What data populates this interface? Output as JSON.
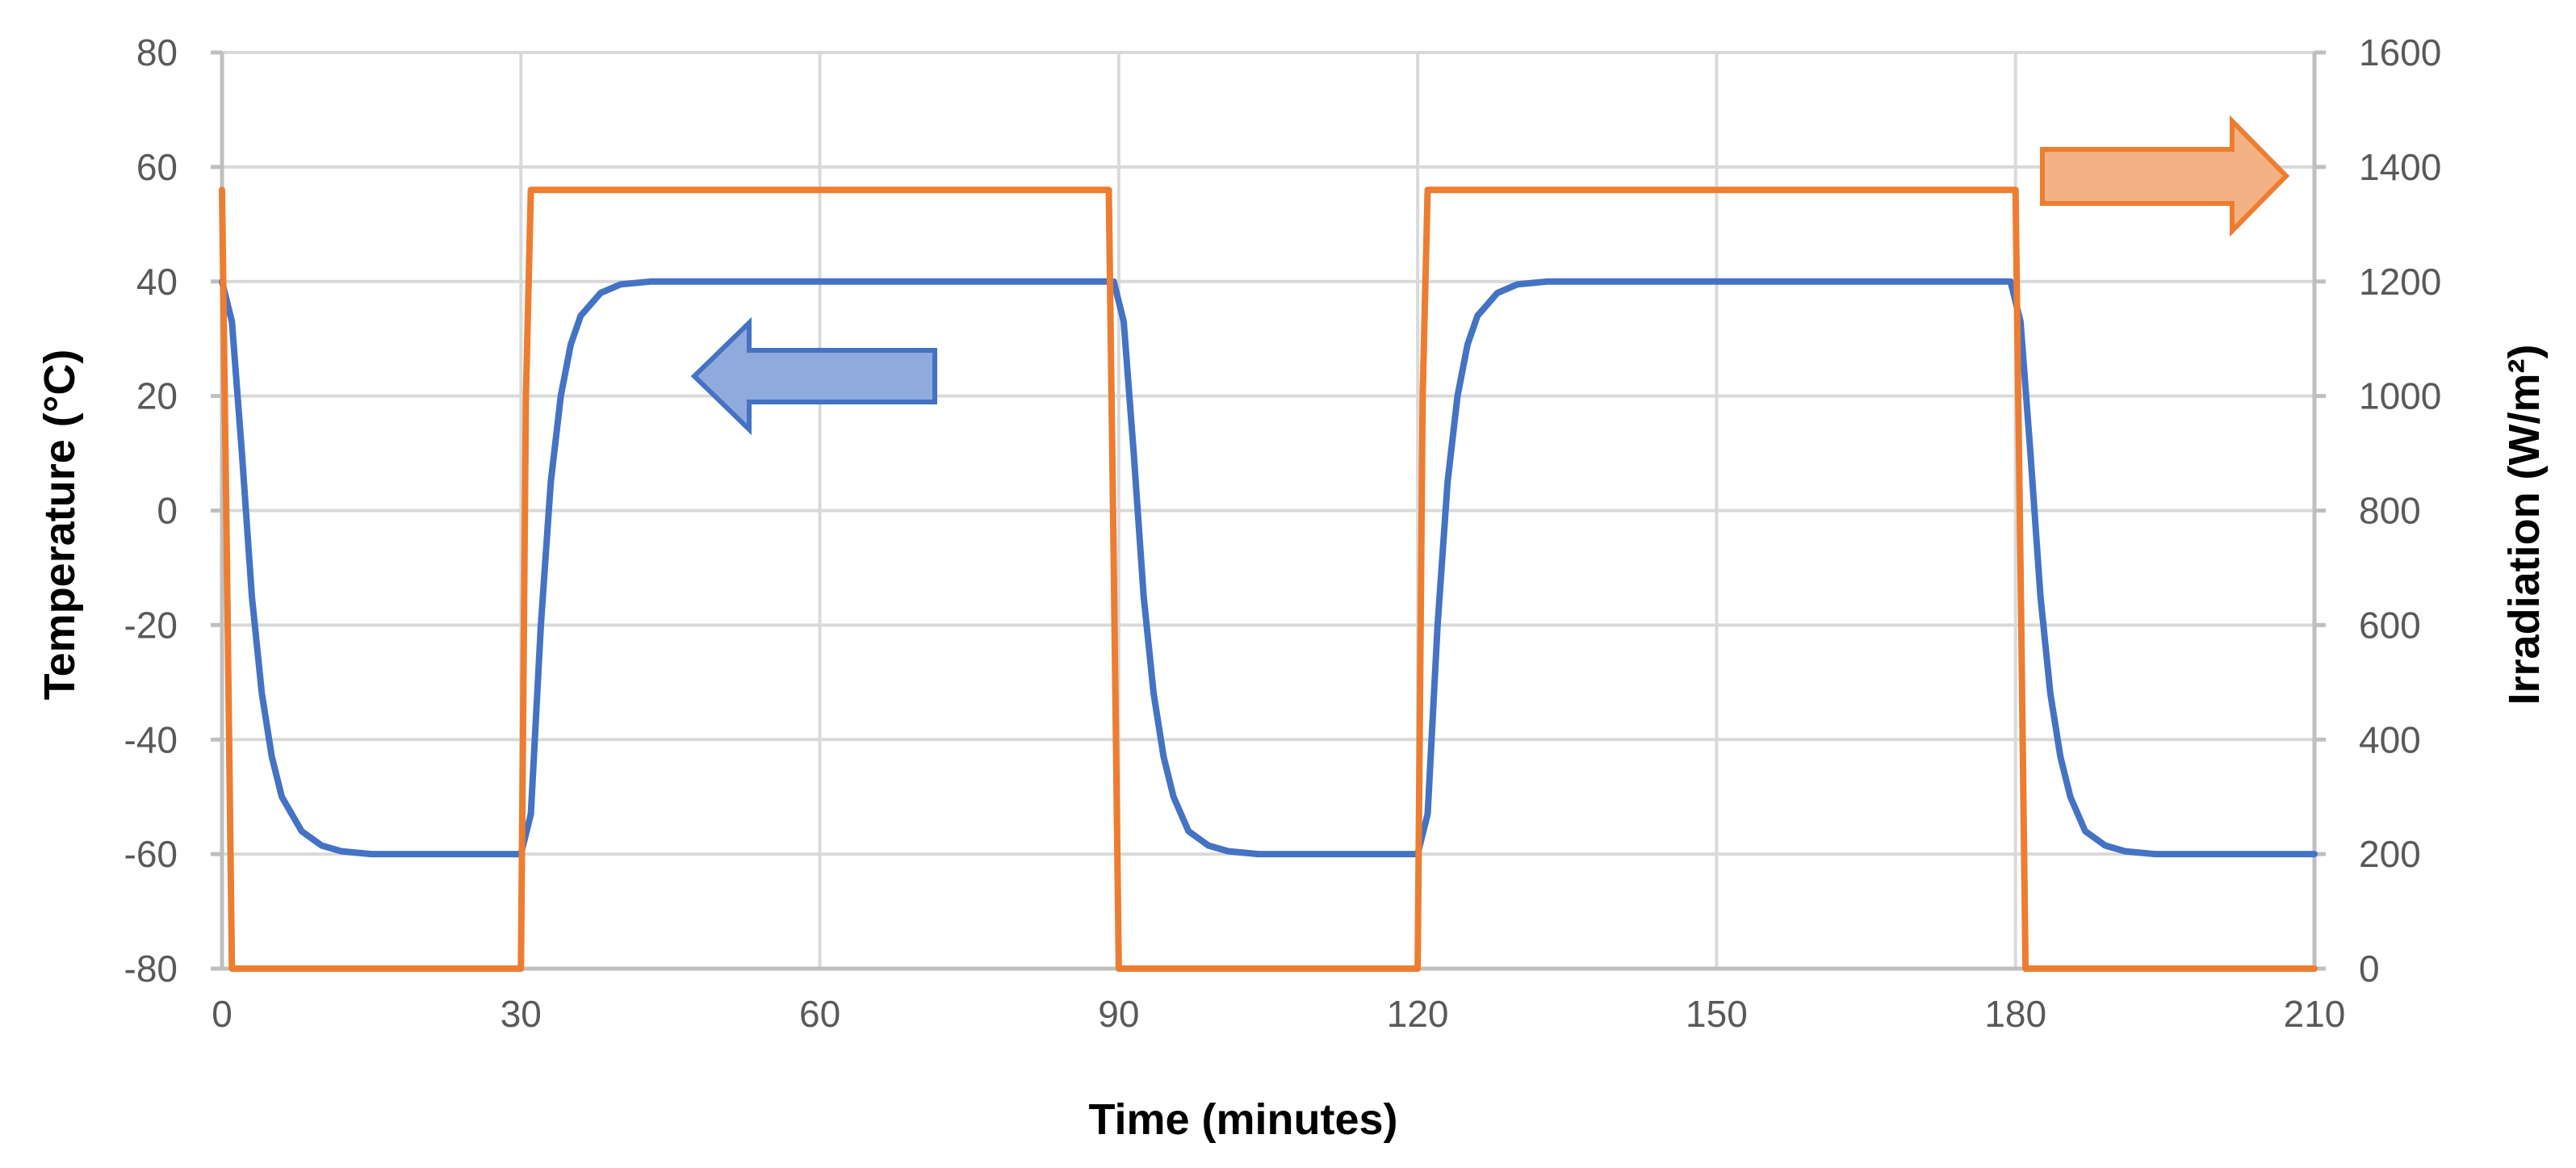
{
  "chart_data": {
    "type": "line",
    "title": "",
    "xlabel": "Time (minutes)",
    "ylabel": "Temperature (°C)",
    "y2label": "Irradiation (W/m²)",
    "xlim": [
      0,
      210
    ],
    "ylim": [
      -80,
      80
    ],
    "y2lim": [
      0,
      1600
    ],
    "x_ticks": [
      0,
      30,
      60,
      90,
      120,
      150,
      180,
      210
    ],
    "y_ticks": [
      -80,
      -60,
      -40,
      -20,
      0,
      20,
      40,
      60,
      80
    ],
    "y2_ticks": [
      0,
      200,
      400,
      600,
      800,
      1000,
      1200,
      1400,
      1600
    ],
    "grid": true,
    "legend": "none",
    "series": [
      {
        "axis": "left",
        "color": "#4472C4",
        "x": [
          0,
          1,
          2,
          3,
          4,
          5,
          6,
          8,
          10,
          12,
          15,
          20,
          25,
          30,
          31,
          32,
          33,
          34,
          35,
          36,
          38,
          40,
          43,
          50,
          60,
          70,
          80,
          89.5,
          90.5,
          91.5,
          92.5,
          93.5,
          94.5,
          95.5,
          97,
          99,
          101,
          104,
          110,
          120,
          121,
          122,
          123,
          124,
          125,
          126,
          128,
          130,
          133,
          140,
          150,
          160,
          170,
          179.5,
          180.5,
          181.5,
          182.5,
          183.5,
          184.5,
          185.5,
          187,
          189,
          191,
          194,
          200,
          210
        ],
        "y": [
          40,
          33,
          10,
          -15,
          -32,
          -43,
          -50,
          -56,
          -58.5,
          -59.5,
          -60,
          -60,
          -60,
          -60,
          -53,
          -20,
          5,
          20,
          29,
          34,
          38,
          39.5,
          40,
          40,
          40,
          40,
          40,
          40,
          33,
          10,
          -15,
          -32,
          -43,
          -50,
          -56,
          -58.5,
          -59.5,
          -60,
          -60,
          -60,
          -53,
          -20,
          5,
          20,
          29,
          34,
          38,
          39.5,
          40,
          40,
          40,
          40,
          40,
          40,
          33,
          10,
          -15,
          -32,
          -43,
          -50,
          -56,
          -58.5,
          -59.5,
          -60,
          -60,
          -60
        ]
      },
      {
        "axis": "right",
        "color": "#ED7D31",
        "x": [
          0,
          0.5,
          1,
          30,
          30.5,
          31,
          89,
          89.5,
          90,
          120,
          120.5,
          121,
          180,
          180.5,
          181,
          210
        ],
        "y": [
          1360,
          700,
          0,
          0,
          1000,
          1360,
          1360,
          700,
          0,
          0,
          1000,
          1360,
          1360,
          700,
          0,
          0
        ]
      }
    ],
    "annotations": [
      {
        "type": "arrow",
        "direction": "left",
        "color": "#8FAADC",
        "stroke": "#4472C4"
      },
      {
        "type": "arrow",
        "direction": "right",
        "color": "#F4B183",
        "stroke": "#ED7D31"
      }
    ]
  }
}
